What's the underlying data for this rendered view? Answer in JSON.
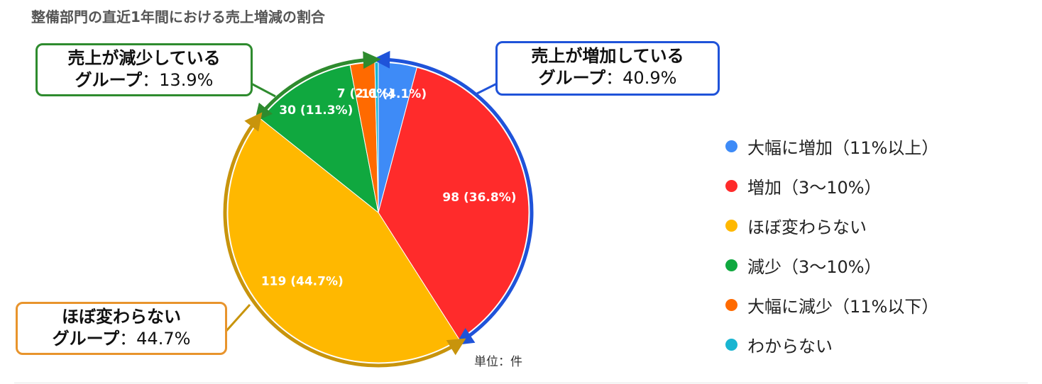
{
  "title": "整備部門の直近1年間における売上増減の割合",
  "unit_label": "単位：件",
  "chart_data": {
    "type": "pie",
    "title": "整備部門の直近1年間における売上増減の割合",
    "slices": [
      {
        "label": "大幅に増加（11%以上）",
        "value": 11,
        "percent": 4.1,
        "data_label": "11 (4.1%)",
        "color": "#3E8BF7"
      },
      {
        "label": "増加（3〜10%）",
        "value": 98,
        "percent": 36.8,
        "data_label": "98 (36.8%)",
        "color": "#FF2B2B"
      },
      {
        "label": "ほぼ変わらない",
        "value": 119,
        "percent": 44.7,
        "data_label": "119 (44.7%)",
        "color": "#FFB800"
      },
      {
        "label": "減少（3〜10%）",
        "value": 30,
        "percent": 11.3,
        "data_label": "30 (11.3%)",
        "color": "#10A83F"
      },
      {
        "label": "大幅に減少（11%以下）",
        "value": 7,
        "percent": 2.6,
        "data_label": "7 (2.6%)",
        "color": "#FF6A00"
      },
      {
        "label": "わからない",
        "value": 1,
        "percent": 0.4,
        "data_label": "",
        "color": "#19B5D1"
      }
    ],
    "legend_position": "right",
    "groups": [
      {
        "name": "売上が増加している",
        "sub": "グループ",
        "percent_text": "40.9%",
        "color": "#1F53D9"
      },
      {
        "name": "売上が減少している",
        "sub": "グループ",
        "percent_text": "13.9%",
        "color": "#2E8B2E"
      },
      {
        "name": "ほぼ変わらない",
        "sub": "グループ",
        "percent_text": "44.7%",
        "color": "#C8940C"
      }
    ]
  }
}
